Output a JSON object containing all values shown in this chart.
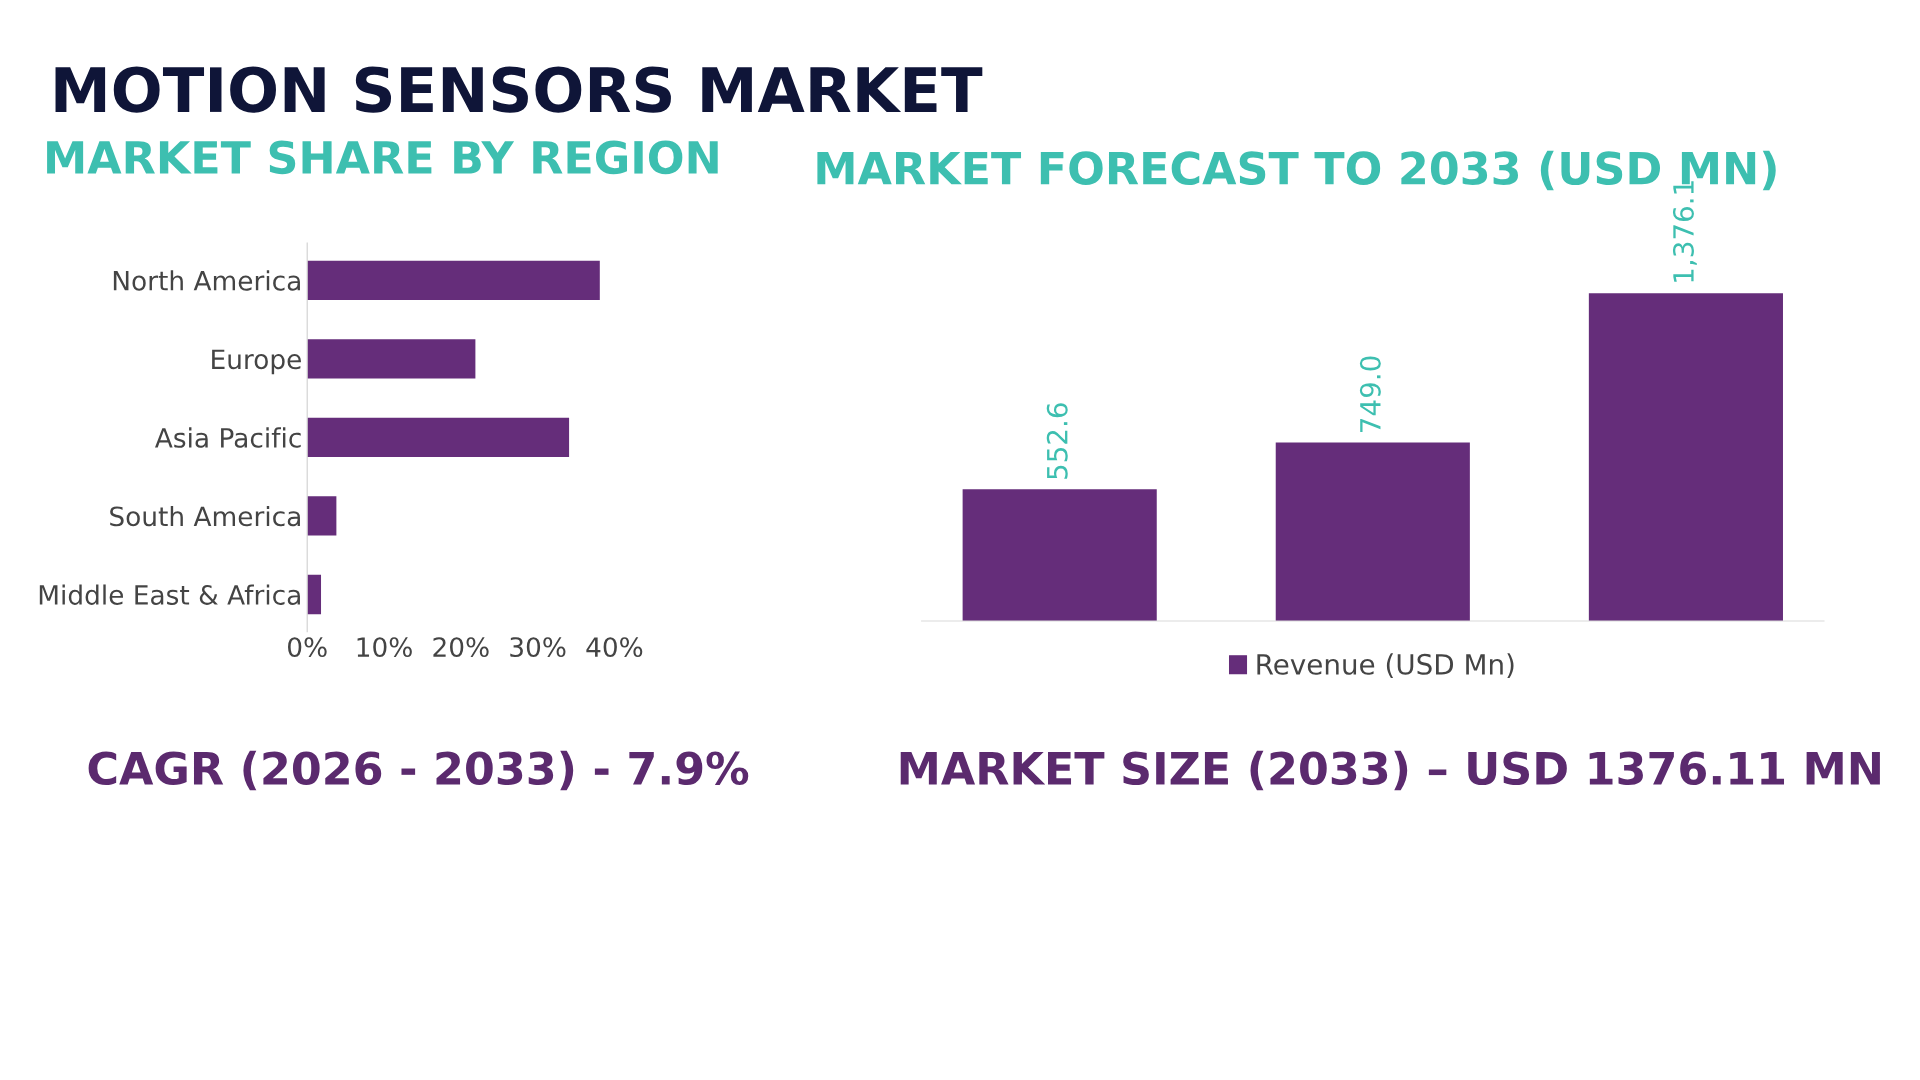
{
  "chart_data": [
    {
      "type": "bar",
      "orientation": "horizontal",
      "title": "MARKET SHARE BY REGION",
      "categories": [
        "North America",
        "Europe",
        "Asia Pacific",
        "South America",
        "Middle East & Africa"
      ],
      "values": [
        38.1,
        21.9,
        34.1,
        3.8,
        1.8
      ],
      "color": "#652d7a",
      "xlim": [
        0,
        40
      ],
      "xticks": [
        {
          "value": 0,
          "label": "0%"
        },
        {
          "value": 10,
          "label": "10%"
        },
        {
          "value": 20,
          "label": "20%"
        },
        {
          "value": 30,
          "label": "30%"
        },
        {
          "value": 40,
          "label": "40%"
        }
      ],
      "grid": false,
      "legend": false,
      "annotations": [
        "MOTION SENSORS MARKET",
        "CAGR (2026 - 2033) - 7.9%"
      ]
    },
    {
      "type": "bar",
      "title": "MARKET FORECAST TO 2033 (USD MN)",
      "categories": [
        null,
        null,
        null
      ],
      "series": [
        {
          "name": "Revenue (USD Mn)",
          "color": "#652d7a",
          "values": [
            552.6,
            749.0,
            1376.1
          ],
          "value_labels": [
            "552.6",
            "749.0",
            "1,376.1"
          ]
        }
      ],
      "legend": "bottom",
      "grid": false,
      "annotations": [
        "MARKET SIZE (2033) – USD 1376.11 MN"
      ]
    }
  ]
}
